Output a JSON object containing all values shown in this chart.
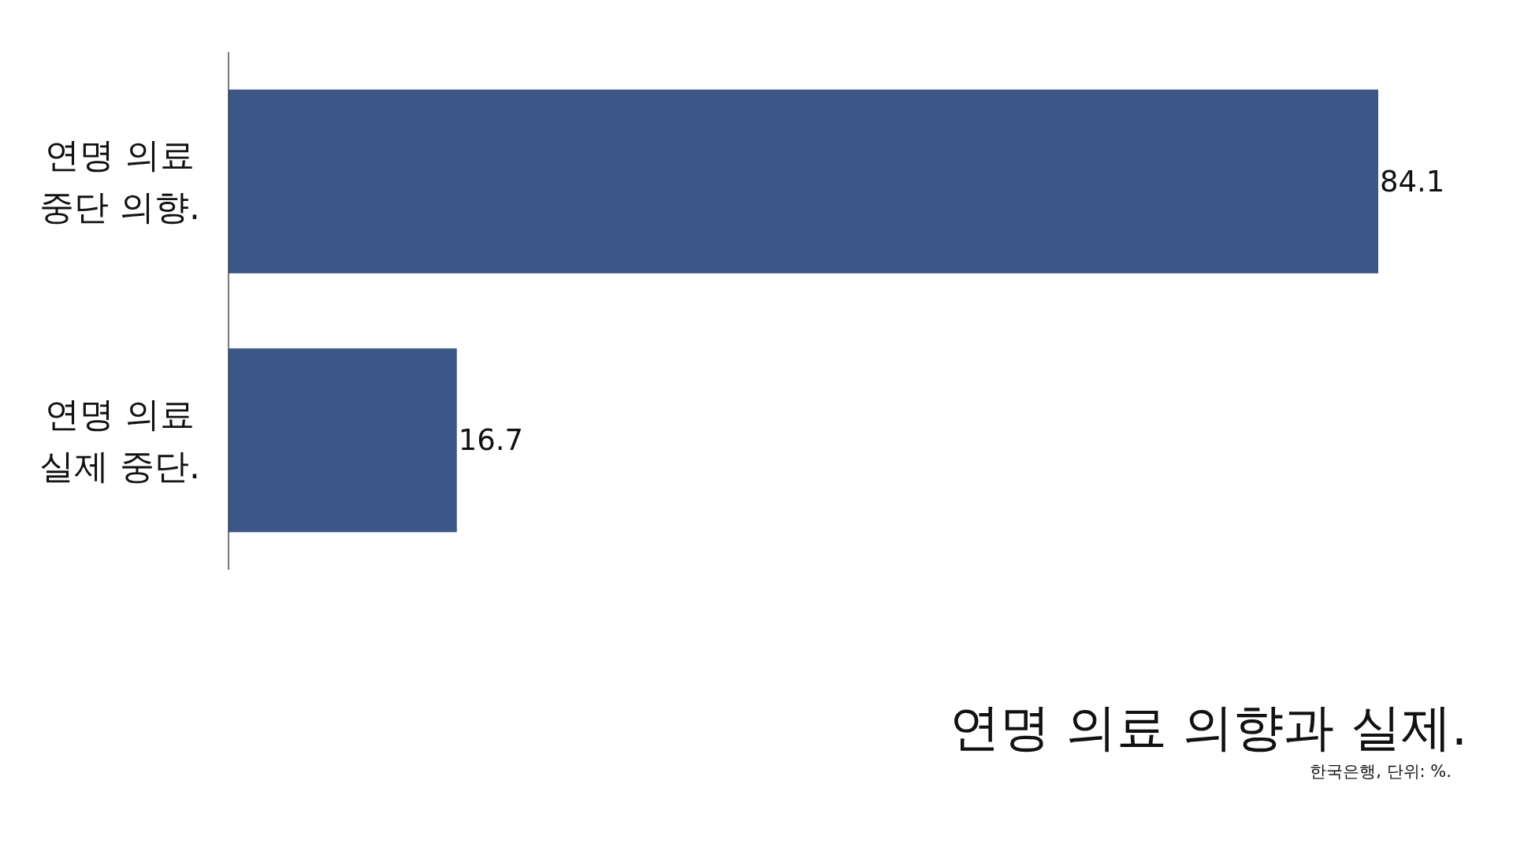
{
  "chart_data": {
    "type": "bar",
    "orientation": "horizontal",
    "title": "연명 의료 의향과 실제.",
    "annotations": [
      "한국은행, 단위: %."
    ],
    "categories": [
      "연명 의료 중단 의향.",
      "연명 의료 실제 중단."
    ],
    "values": [
      84.1,
      16.7
    ],
    "color": "#3a5787",
    "data_labels": true
  }
}
